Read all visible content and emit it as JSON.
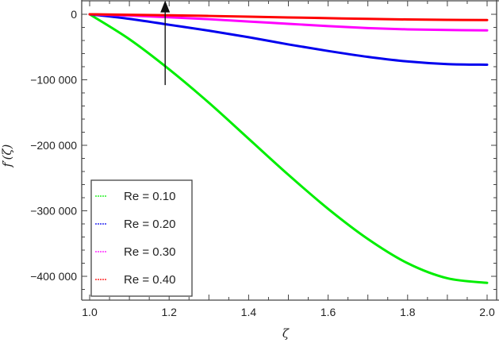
{
  "chart_data": {
    "type": "line",
    "title": "",
    "xlabel": "ζ",
    "ylabel": "f′(ζ)",
    "xlim": [
      1.0,
      2.0
    ],
    "ylim": [
      -435000,
      25000
    ],
    "xticks": [
      1.0,
      1.2,
      1.4,
      1.6,
      1.8,
      2.0
    ],
    "xtick_labels": [
      "1.0",
      "1.2",
      "1.4",
      "1.6",
      "1.8",
      "2.0"
    ],
    "yticks": [
      0,
      -100000,
      -200000,
      -300000,
      -400000
    ],
    "ytick_labels": [
      "0",
      "−100 000",
      "−200 000",
      "−300 000",
      "−400 000"
    ],
    "grid": false,
    "legend_position": "lower left",
    "x": [
      1.0,
      1.1,
      1.2,
      1.3,
      1.4,
      1.5,
      1.6,
      1.7,
      1.8,
      1.9,
      2.0
    ],
    "series": [
      {
        "name": "Re = 0.10",
        "color": "#00ee00",
        "values": [
          0,
          -38000,
          -84000,
          -135000,
          -190000,
          -245000,
          -297000,
          -343000,
          -380000,
          -403000,
          -410000
        ]
      },
      {
        "name": "Re = 0.20",
        "color": "#0000ee",
        "values": [
          0,
          -7000,
          -16000,
          -25000,
          -35000,
          -46000,
          -56000,
          -65000,
          -72000,
          -76000,
          -77000
        ]
      },
      {
        "name": "Re = 0.30",
        "color": "#ff00ff",
        "values": [
          0,
          -2000,
          -4500,
          -7500,
          -11000,
          -14500,
          -18000,
          -21000,
          -23000,
          -24000,
          -24500
        ]
      },
      {
        "name": "Re = 0.40",
        "color": "#ff0000",
        "values": [
          0,
          -700,
          -1500,
          -2500,
          -3600,
          -4800,
          -5900,
          -7000,
          -7900,
          -8500,
          -8800
        ]
      }
    ],
    "annotations": [
      {
        "type": "arrow",
        "direction": "up",
        "x": 1.19,
        "y_from": -108000,
        "y_to": 15000,
        "meaning": "increasing Re"
      }
    ]
  },
  "legend": {
    "items": [
      {
        "label": "Re = 0.10",
        "color": "#00ee00"
      },
      {
        "label": "Re = 0.20",
        "color": "#0000ee"
      },
      {
        "label": "Re = 0.30",
        "color": "#ff00ff"
      },
      {
        "label": "Re = 0.40",
        "color": "#ff0000"
      }
    ]
  }
}
